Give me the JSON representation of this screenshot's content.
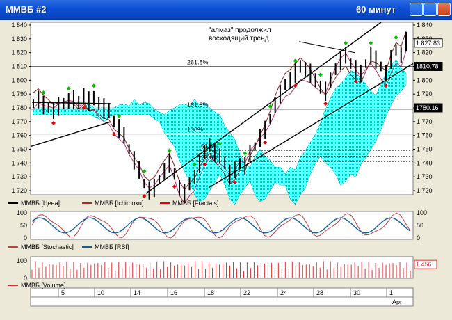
{
  "window": {
    "title": "ММВБ #2",
    "timeframe": "60 минут",
    "accent": "#0a4fd6"
  },
  "panes": {
    "price": {
      "y_ticks": [
        1720,
        1730,
        1740,
        1750,
        1760,
        1770,
        1780,
        1790,
        1800,
        1810,
        1820,
        1830,
        1840
      ],
      "ylim": [
        1717,
        1842
      ]
    },
    "osc": {
      "y_ticks": [
        0,
        50,
        100
      ],
      "ylim": [
        -5,
        105
      ]
    },
    "volume": {
      "y_ticks": [
        0,
        100
      ],
      "ylim": [
        0,
        125
      ]
    }
  },
  "annotations": {
    "note": "\"алмаз\" продолжил\nвосходящий тренд",
    "fib": [
      {
        "label": "261.8%",
        "y": 1810
      },
      {
        "label": "161.8%",
        "y": 1779
      },
      {
        "label": "100%",
        "y": 1761
      },
      {
        "label": "61.8%",
        "y": 1749
      },
      {
        "label": "38.2%",
        "y": 1745
      },
      {
        "label": "23.6%",
        "y": 1741
      }
    ]
  },
  "price_tags": {
    "current": "1 827.83",
    "level1": "1810.78",
    "level2": "1780.16",
    "volume": "1 456"
  },
  "legends": {
    "price": [
      {
        "label": "ММВБ [Цена]",
        "color": "#000000"
      },
      {
        "label": "ММВБ [Ichimoku]",
        "color": "#a0302a"
      },
      {
        "label": "ММВБ [Fractals]",
        "color": "#e00000"
      }
    ],
    "osc": [
      {
        "label": "ММВБ [Stochastic]",
        "color": "#c04040"
      },
      {
        "label": "ММВБ [RSI]",
        "color": "#1060a0"
      }
    ],
    "volume": [
      {
        "label": "ММВБ [Volume]",
        "color": "#e03030"
      }
    ]
  },
  "x_axis": {
    "labels": [
      "5",
      "10",
      "14",
      "16",
      "18",
      "22",
      "24",
      "28",
      "30",
      "1"
    ],
    "month": "Apr"
  },
  "colors": {
    "cloud": "#00c8c8",
    "cloud_alt": "#00a000",
    "up_fractal": "#00c000",
    "down_fractal": "#e00000",
    "volume": "#e03030"
  },
  "chart_data": {
    "type": "line",
    "series": [
      {
        "name": "ММВБ [Цена]",
        "values": [
          1783,
          1786,
          1782,
          1780,
          1778,
          1781,
          1783,
          1785,
          1786,
          1784,
          1789,
          1785,
          1787,
          1783,
          1780,
          1778,
          1770,
          1765,
          1760,
          1750,
          1742,
          1735,
          1725,
          1720,
          1722,
          1728,
          1734,
          1740,
          1732,
          1722,
          1718,
          1725,
          1730,
          1740,
          1748,
          1753,
          1748,
          1745,
          1740,
          1732,
          1735,
          1740,
          1738,
          1747,
          1752,
          1758,
          1764,
          1772,
          1782,
          1790,
          1797,
          1800,
          1805,
          1810,
          1808,
          1805,
          1800,
          1795,
          1792,
          1800,
          1808,
          1814,
          1818,
          1812,
          1808,
          1805,
          1812,
          1818,
          1815,
          1810,
          1805,
          1815,
          1822,
          1818,
          1828
        ]
      }
    ],
    "ylim": [
      1717,
      1842
    ]
  }
}
